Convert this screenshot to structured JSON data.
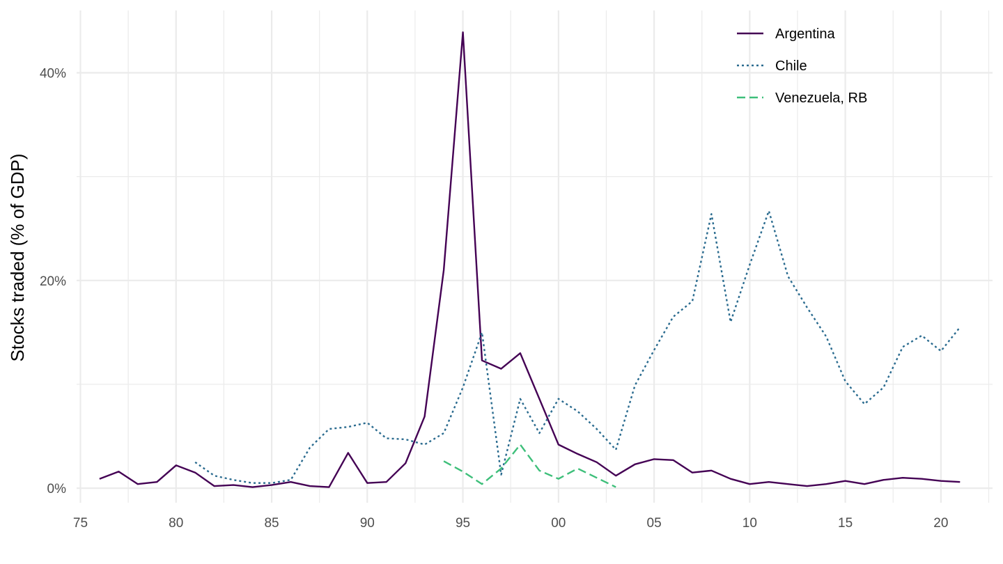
{
  "chart_data": {
    "type": "line",
    "title": "",
    "xlabel": "",
    "ylabel": "Stocks traded (% of GDP)",
    "x_unit": "year",
    "xlim": [
      1974.8,
      2022.7
    ],
    "ylim": [
      -1.4,
      46
    ],
    "x_ticks": [
      {
        "value": 1975,
        "label": "75"
      },
      {
        "value": 1980,
        "label": "80"
      },
      {
        "value": 1985,
        "label": "85"
      },
      {
        "value": 1990,
        "label": "90"
      },
      {
        "value": 1995,
        "label": "95"
      },
      {
        "value": 2000,
        "label": "00"
      },
      {
        "value": 2005,
        "label": "05"
      },
      {
        "value": 2010,
        "label": "10"
      },
      {
        "value": 2015,
        "label": "15"
      },
      {
        "value": 2020,
        "label": "20"
      }
    ],
    "y_ticks": [
      {
        "value": 0,
        "label": "0%"
      },
      {
        "value": 20,
        "label": "20%"
      },
      {
        "value": 40,
        "label": "40%"
      }
    ],
    "grid": true,
    "legend_position": "top-right",
    "series": [
      {
        "name": "Argentina",
        "color": "#440154",
        "dash": "solid",
        "x": [
          1976,
          1977,
          1978,
          1979,
          1980,
          1981,
          1982,
          1983,
          1984,
          1985,
          1986,
          1987,
          1988,
          1989,
          1990,
          1991,
          1992,
          1993,
          1994,
          1995,
          1996,
          1997,
          1998,
          1999,
          2000,
          2001,
          2002,
          2003,
          2004,
          2005,
          2006,
          2007,
          2008,
          2009,
          2010,
          2011,
          2012,
          2013,
          2014,
          2015,
          2016,
          2017,
          2018,
          2019,
          2020,
          2021
        ],
        "values": [
          0.9,
          1.6,
          0.4,
          0.6,
          2.2,
          1.5,
          0.2,
          0.3,
          0.1,
          0.3,
          0.6,
          0.2,
          0.1,
          3.4,
          0.5,
          0.6,
          2.4,
          6.9,
          21.0,
          43.9,
          12.3,
          11.5,
          13.0,
          8.6,
          4.2,
          3.3,
          2.5,
          1.2,
          2.3,
          2.8,
          2.7,
          1.5,
          1.7,
          0.9,
          0.4,
          0.6,
          0.4,
          0.2,
          0.4,
          0.7,
          0.4,
          0.8,
          1.0,
          0.9,
          0.7,
          0.6
        ]
      },
      {
        "name": "Chile",
        "color": "#2a6b8f",
        "dash": "dotted",
        "x": [
          1981,
          1982,
          1983,
          1984,
          1985,
          1986,
          1987,
          1988,
          1989,
          1990,
          1991,
          1992,
          1993,
          1994,
          1995,
          1996,
          1997,
          1998,
          1999,
          2000,
          2001,
          2002,
          2003,
          2004,
          2005,
          2006,
          2007,
          2008,
          2009,
          2010,
          2011,
          2012,
          2013,
          2014,
          2015,
          2016,
          2017,
          2018,
          2019,
          2020,
          2021
        ],
        "values": [
          2.5,
          1.2,
          0.8,
          0.5,
          0.5,
          0.8,
          3.9,
          5.7,
          5.9,
          6.3,
          4.8,
          4.7,
          4.2,
          5.3,
          9.7,
          15.0,
          1.3,
          8.6,
          5.3,
          8.6,
          7.4,
          5.7,
          3.7,
          9.9,
          13.3,
          16.5,
          18.0,
          26.4,
          16.0,
          21.5,
          26.7,
          20.4,
          17.4,
          14.6,
          10.3,
          8.1,
          9.7,
          13.6,
          14.7,
          13.2,
          15.5
        ]
      },
      {
        "name": "Venezuela, RB",
        "color": "#3ebf7a",
        "dash": "dashed",
        "x": [
          1994,
          1995,
          1996,
          1997,
          1998,
          1999,
          2000,
          2001,
          2002,
          2003
        ],
        "values": [
          2.6,
          1.6,
          0.4,
          1.9,
          4.2,
          1.7,
          0.9,
          1.9,
          1.0,
          0.1
        ]
      }
    ]
  }
}
